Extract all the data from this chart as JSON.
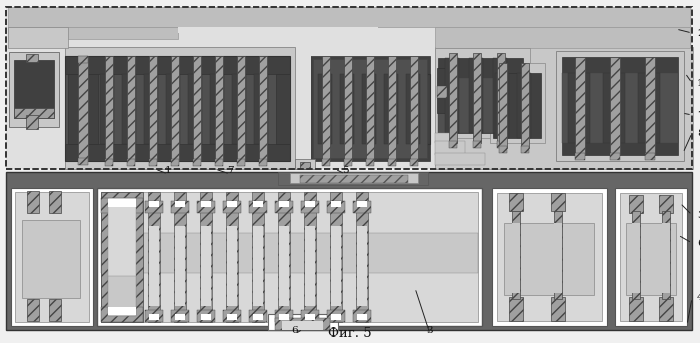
{
  "fig_title": "Фиг. 5",
  "bg_color": "#f0f0f0",
  "colors": {
    "dark_gray": "#404040",
    "med_dark": "#505050",
    "medium_gray": "#808080",
    "light_gray": "#b0b0b0",
    "lighter_gray": "#c8c8c8",
    "very_light": "#d8d8d8",
    "hatch_fc": "#a0a0a0",
    "white": "#ffffff",
    "top_bg": "#e0e0e0",
    "bot_bg": "#666666",
    "band": "#bebebe",
    "outline": "#222222"
  }
}
